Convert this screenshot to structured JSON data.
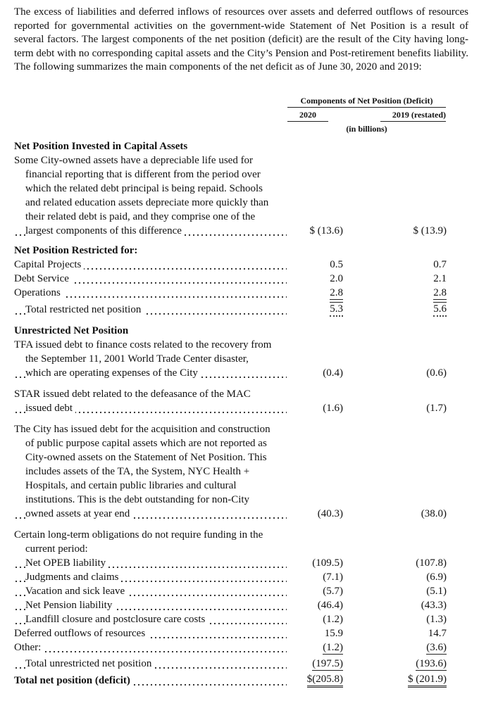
{
  "intro": "The excess of liabilities and deferred inflows of resources over assets and deferred outflows of resources reported for governmental activities on the government-wide Statement of Net Position is a result of several factors. The largest components of the net position (deficit) are the result of the City having long-term debt with no corresponding capital assets and the City’s Pension and Post-retirement benefits liability. The following summarizes the main components of the net deficit as of June 30, 2020 and 2019:",
  "table": {
    "header": {
      "title": "Components of Net Position (Deficit)",
      "columns": [
        "2020",
        "2019 (restated)"
      ],
      "units": "(in billions)"
    },
    "sections": [
      {
        "heading": "Net Position Invested in Capital Assets",
        "rows": [
          {
            "label": "Some City-owned assets have a depreciable life used for financial reporting that is different from the period over which the related debt principal is being repaid. Schools and related education assets depreciate more quickly than their related debt is paid, and they comprise one of the largest components of this difference",
            "values": [
              "$ (13.6)",
              "$ (13.9)"
            ]
          }
        ]
      },
      {
        "heading": "Net Position Restricted for:",
        "rows": [
          {
            "label": "Capital Projects",
            "values": [
              "0.5",
              "0.7"
            ]
          },
          {
            "label": "Debt Service",
            "values": [
              "2.0",
              "2.1"
            ]
          },
          {
            "label": "Operations",
            "values": [
              "2.8",
              "2.8"
            ]
          },
          {
            "label": "Total restricted net position",
            "values": [
              "5.3",
              "5.6"
            ]
          }
        ]
      },
      {
        "heading": "Unrestricted Net Position",
        "rows": [
          {
            "label": "TFA issued debt to finance costs related to the recovery from the September 11, 2001 World Trade Center disaster, which are operating expenses of the City",
            "values": [
              "(0.4)",
              "(0.6)"
            ]
          },
          {
            "label": "STAR issued debt related to the defeasance of the MAC issued debt",
            "values": [
              "(1.6)",
              "(1.7)"
            ]
          },
          {
            "label": "The City has issued debt for the acquisition and construction of public purpose capital assets which are not reported as City-owned assets on the Statement of Net Position. This includes assets of the TA, the System, NYC Health + Hospitals, and certain public libraries and cultural institutions. This is the debt outstanding for non-City owned assets at year end",
            "values": [
              "(40.3)",
              "(38.0)"
            ]
          },
          {
            "label": "Certain long-term obligations do not require funding in the current period:"
          },
          {
            "label": "Net OPEB liability",
            "values": [
              "(109.5)",
              "(107.8)"
            ]
          },
          {
            "label": "Judgments and claims",
            "values": [
              "(7.1)",
              "(6.9)"
            ]
          },
          {
            "label": "Vacation and sick leave",
            "values": [
              "(5.7)",
              "(5.1)"
            ]
          },
          {
            "label": "Net Pension liability",
            "values": [
              "(46.4)",
              "(43.3)"
            ]
          },
          {
            "label": "Landfill closure and postclosure care costs",
            "values": [
              "(1.2)",
              "(1.3)"
            ]
          },
          {
            "label": "Deferred outflows of resources",
            "values": [
              "15.9",
              "14.7"
            ]
          },
          {
            "label": "Other:",
            "values": [
              "(1.2)",
              "(3.6)"
            ]
          },
          {
            "label": "Total unrestricted net position",
            "values": [
              "(197.5)",
              "(193.6)"
            ]
          }
        ]
      }
    ],
    "total": {
      "label": "Total net position (deficit)",
      "values": [
        "$(205.8)",
        "$ (201.9)"
      ]
    }
  }
}
